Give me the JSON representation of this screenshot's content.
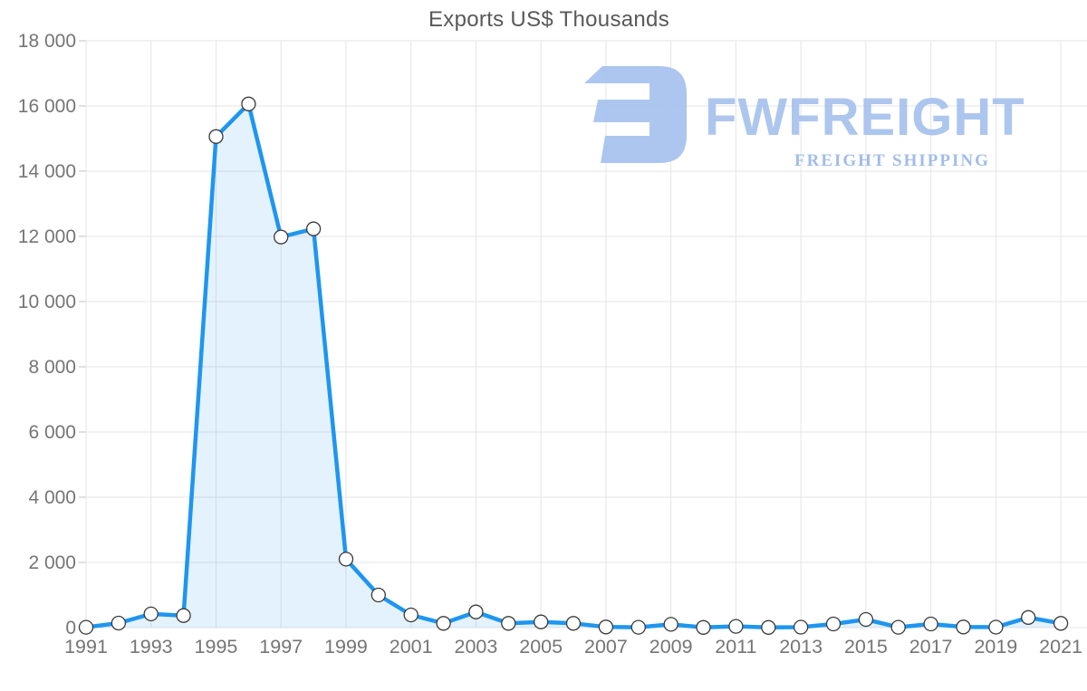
{
  "chart_data": {
    "type": "area",
    "title": "Exports US$ Thousands",
    "x": [
      1991,
      1992,
      1993,
      1994,
      1995,
      1996,
      1997,
      1998,
      1999,
      2000,
      2001,
      2002,
      2003,
      2004,
      2005,
      2006,
      2007,
      2008,
      2009,
      2010,
      2011,
      2012,
      2013,
      2014,
      2015,
      2016,
      2017,
      2018,
      2019,
      2020,
      2021
    ],
    "series": [
      {
        "name": "Exports US$ Thousands",
        "values": [
          10,
          140,
          420,
          370,
          15060,
          16060,
          11980,
          12230,
          2100,
          1000,
          390,
          130,
          480,
          130,
          175,
          130,
          20,
          10,
          100,
          5,
          40,
          5,
          15,
          110,
          250,
          10,
          110,
          20,
          15,
          310,
          130
        ]
      }
    ],
    "ylim": [
      0,
      18000
    ],
    "ytick_step": 2000,
    "ytick_labels": [
      "0",
      "2 000",
      "4 000",
      "6 000",
      "8 000",
      "10 000",
      "12 000",
      "14 000",
      "16 000",
      "18 000"
    ],
    "xtick_labels": [
      "1991",
      "1993",
      "1995",
      "1997",
      "1999",
      "2001",
      "2003",
      "2005",
      "2007",
      "2009",
      "2011",
      "2013",
      "2015",
      "2017",
      "2019",
      "2021"
    ],
    "grid": "on",
    "legend": "none",
    "line_color": "#1e96f0",
    "fill_color": "rgba(30,150,240,0.12)",
    "marker_fill": "#ffffff",
    "marker_stroke": "#3a3a3a",
    "grid_color": "#e5e5e5",
    "tick_color": "#cccccc",
    "axis_label_color": "#757575",
    "title_color": "#595959"
  },
  "watermark": {
    "brand": "FWFREIGHT",
    "tagline": "FREIGHT SHIPPING",
    "logo_color": "#a9c3ef",
    "brand_color": "#a9c3ee",
    "tagline_color": "#9db9e8"
  }
}
